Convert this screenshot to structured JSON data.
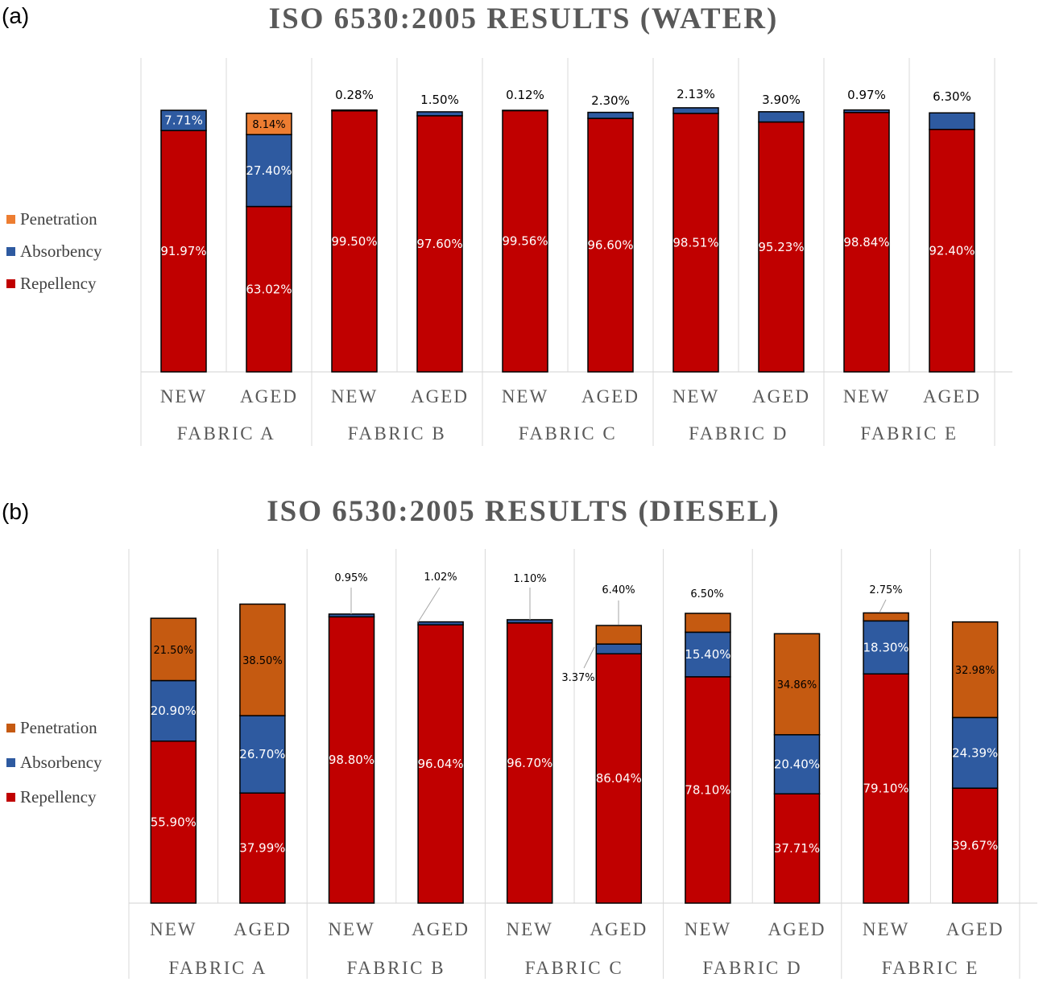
{
  "colors": {
    "water": {
      "Repellency": "#c00000",
      "Absorbency": "#2e5aa0",
      "Penetration": "#ed7d31"
    },
    "diesel": {
      "Repellency": "#c00000",
      "Absorbency": "#2e5aa0",
      "Penetration": "#c55a11"
    }
  },
  "panels": [
    {
      "letter": "(a)",
      "title": "ISO 6530:2005 RESULTS (WATER)"
    },
    {
      "letter": "(b)",
      "title": "ISO 6530:2005 RESULTS (DIESEL)"
    }
  ],
  "chart_data": [
    {
      "type": "bar",
      "stacked": true,
      "title": "ISO 6530:2005 RESULTS (WATER)",
      "ylim": [
        0,
        100
      ],
      "legend": [
        "Penetration",
        "Absorbency",
        "Repellency"
      ],
      "groups": [
        "FABRIC A",
        "FABRIC B",
        "FABRIC C",
        "FABRIC D",
        "FABRIC E"
      ],
      "categories": [
        "NEW",
        "AGED",
        "NEW",
        "AGED",
        "NEW",
        "AGED",
        "NEW",
        "AGED",
        "NEW",
        "AGED"
      ],
      "series": [
        {
          "name": "Repellency",
          "values": [
            91.97,
            63.02,
            99.5,
            97.6,
            99.56,
            96.6,
            98.51,
            95.23,
            98.84,
            92.4
          ],
          "labels": [
            "91.97%",
            "63.02%",
            "99.50%",
            "97.60%",
            "99.56%",
            "96.60%",
            "98.51%",
            "95.23%",
            "98.84%",
            "92.40%"
          ]
        },
        {
          "name": "Absorbency",
          "values": [
            7.71,
            27.4,
            0.28,
            1.5,
            0.12,
            2.3,
            2.13,
            3.9,
            0.97,
            6.3
          ],
          "labels": [
            "7.71%",
            "27.40%",
            "0.28%",
            "1.50%",
            "0.12%",
            "2.30%",
            "2.13%",
            "3.90%",
            "0.97%",
            "6.30%"
          ]
        },
        {
          "name": "Penetration",
          "values": [
            0,
            8.14,
            0,
            0,
            0,
            0,
            0,
            0,
            0,
            0
          ],
          "labels": [
            "",
            "8.14%",
            "",
            "",
            "",
            "",
            "",
            "",
            "",
            ""
          ]
        }
      ]
    },
    {
      "type": "bar",
      "stacked": true,
      "title": "ISO 6530:2005 RESULTS (DIESEL)",
      "ylim": [
        0,
        100
      ],
      "legend": [
        "Penetration",
        "Absorbency",
        "Repellency"
      ],
      "groups": [
        "FABRIC A",
        "FABRIC B",
        "FABRIC C",
        "FABRIC D",
        "FABRIC E"
      ],
      "categories": [
        "NEW",
        "AGED",
        "NEW",
        "AGED",
        "NEW",
        "AGED",
        "NEW",
        "AGED",
        "NEW",
        "AGED"
      ],
      "series": [
        {
          "name": "Repellency",
          "values": [
            55.9,
            37.99,
            98.8,
            96.04,
            96.7,
            86.04,
            78.1,
            37.71,
            79.1,
            39.67
          ],
          "labels": [
            "55.90%",
            "37.99%",
            "98.80%",
            "96.04%",
            "96.70%",
            "86.04%",
            "78.10%",
            "37.71%",
            "79.10%",
            "39.67%"
          ]
        },
        {
          "name": "Absorbency",
          "values": [
            20.9,
            26.7,
            0.95,
            1.02,
            1.1,
            3.37,
            15.4,
            20.4,
            18.3,
            24.39
          ],
          "labels": [
            "20.90%",
            "26.70%",
            "0.95%",
            "1.02%",
            "1.10%",
            "3.37%",
            "15.40%",
            "20.40%",
            "18.30%",
            "24.39%"
          ]
        },
        {
          "name": "Penetration",
          "values": [
            21.5,
            38.5,
            0,
            0,
            0,
            6.4,
            6.5,
            34.86,
            2.75,
            32.98
          ],
          "labels": [
            "21.50%",
            "38.50%",
            "",
            "",
            "",
            "6.40%",
            "6.50%",
            "34.86%",
            "2.75%",
            "32.98%"
          ]
        }
      ]
    }
  ]
}
